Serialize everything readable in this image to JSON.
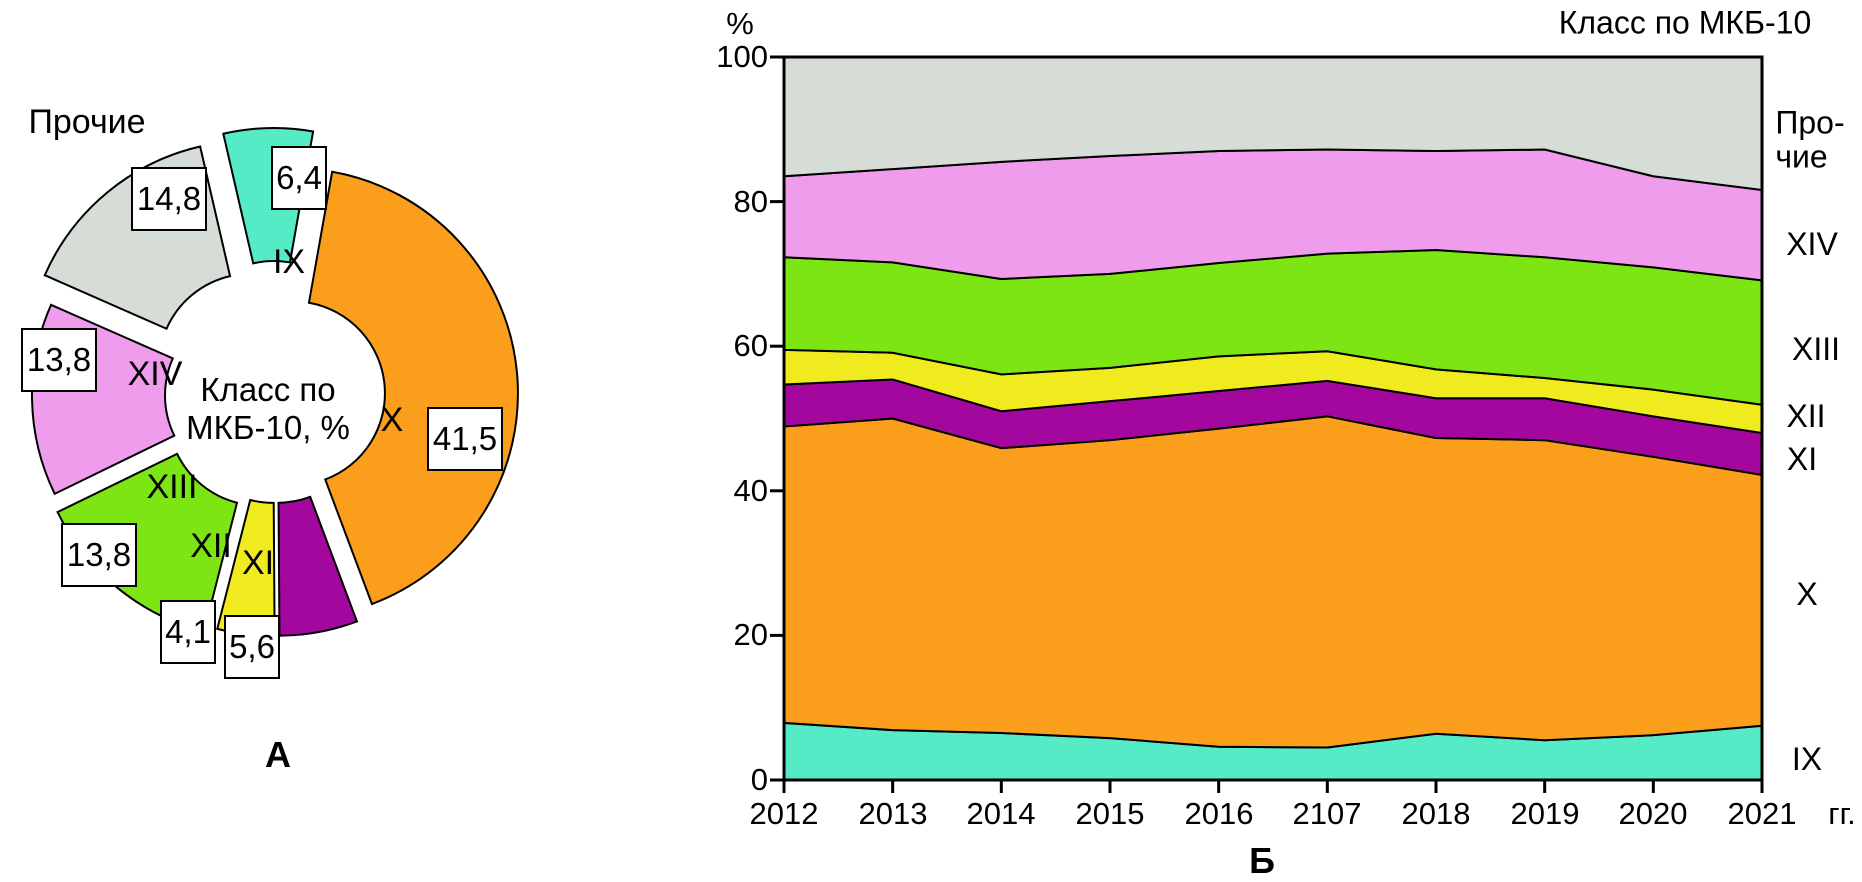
{
  "panel_a": {
    "panel_label": "А",
    "center_text_line1": "Класс по",
    "center_text_line2": "МКБ-10, %",
    "segments": [
      {
        "label": "IX",
        "value_text": "6,4",
        "value": 6.4,
        "color": "#55EBC6"
      },
      {
        "label": "X",
        "value_text": "41,5",
        "value": 41.5,
        "color": "#FA9E1C"
      },
      {
        "label": "XI",
        "value_text": "5,6",
        "value": 5.6,
        "color": "#A3079E"
      },
      {
        "label": "XII",
        "value_text": "4,1",
        "value": 4.1,
        "color": "#F0EB1E"
      },
      {
        "label": "XIII",
        "value_text": "13,8",
        "value": 13.8,
        "color": "#7DE514"
      },
      {
        "label": "XIV",
        "value_text": "13,8",
        "value": 13.8,
        "color": "#EF9CEC"
      },
      {
        "label": "Прочие",
        "value_text": "14,8",
        "value": 14.8,
        "color": "#D6DDD6"
      }
    ]
  },
  "panel_b": {
    "panel_label": "Б",
    "title": "Класс по МКБ-10",
    "y_axis_unit": "%",
    "x_axis_unit": "гг.",
    "y_ticks": [
      "100",
      "80",
      "60",
      "40",
      "20",
      "0"
    ],
    "years": [
      "2012",
      "2013",
      "2014",
      "2015",
      "2016",
      "2107",
      "2018",
      "2019",
      "2020",
      "2021"
    ],
    "right_labels": {
      "other_line1": "Про-",
      "other_line2": "чие",
      "xiv": "XIV",
      "xiii": "XIII",
      "xii": "XII",
      "xi": "XI",
      "x": "X",
      "ix": "IX"
    }
  },
  "chart_data": [
    {
      "type": "pie",
      "donut": true,
      "exploded": true,
      "title": "Класс по МКБ-10, %",
      "labels": [
        "IX",
        "X",
        "XI",
        "XII",
        "XIII",
        "XIV",
        "Прочие"
      ],
      "values": [
        6.4,
        41.5,
        5.6,
        4.1,
        13.8,
        13.8,
        14.8
      ],
      "value_labels": [
        "6,4",
        "41,5",
        "5,6",
        "4,1",
        "13,8",
        "13,8",
        "14,8"
      ],
      "colors": [
        "#55EBC6",
        "#FA9E1C",
        "#A3079E",
        "#F0EB1E",
        "#7DE514",
        "#EF9CEC",
        "#D6DDD6"
      ]
    },
    {
      "type": "area",
      "stacked": true,
      "title": "Класс по МКБ-10",
      "ylabel": "%",
      "xlabel": "гг.",
      "ylim": [
        0,
        100
      ],
      "grid": false,
      "legend_position": "right",
      "x": [
        "2012",
        "2013",
        "2014",
        "2015",
        "2016",
        "2107",
        "2018",
        "2019",
        "2020",
        "2021"
      ],
      "series": [
        {
          "name": "IX",
          "color": "#55EBC6",
          "values": [
            7.9,
            6.9,
            6.5,
            5.8,
            4.6,
            4.5,
            6.4,
            5.5,
            6.2,
            7.5
          ]
        },
        {
          "name": "X",
          "color": "#FA9E1C",
          "values": [
            41.0,
            43.1,
            39.4,
            41.2,
            44.0,
            45.8,
            40.9,
            41.5,
            38.5,
            34.7
          ]
        },
        {
          "name": "XI",
          "color": "#A3079E",
          "values": [
            5.8,
            5.4,
            5.1,
            5.4,
            5.2,
            4.9,
            5.5,
            5.8,
            5.6,
            5.8
          ]
        },
        {
          "name": "XII",
          "color": "#F0EB1E",
          "values": [
            4.8,
            3.7,
            5.1,
            4.6,
            4.8,
            4.1,
            4.0,
            2.8,
            3.7,
            3.9
          ]
        },
        {
          "name": "XIII",
          "color": "#7DE514",
          "values": [
            12.8,
            12.5,
            13.2,
            13.0,
            12.9,
            13.5,
            16.5,
            16.7,
            16.9,
            17.2
          ]
        },
        {
          "name": "XIV",
          "color": "#EF9CEC",
          "values": [
            11.2,
            12.9,
            16.2,
            16.3,
            15.5,
            14.4,
            13.7,
            14.9,
            12.6,
            12.5
          ]
        },
        {
          "name": "Прочие",
          "color": "#D6DDD6",
          "values": [
            16.5,
            15.5,
            14.5,
            13.7,
            13.0,
            12.8,
            13.0,
            12.8,
            16.5,
            18.4
          ]
        }
      ]
    }
  ]
}
